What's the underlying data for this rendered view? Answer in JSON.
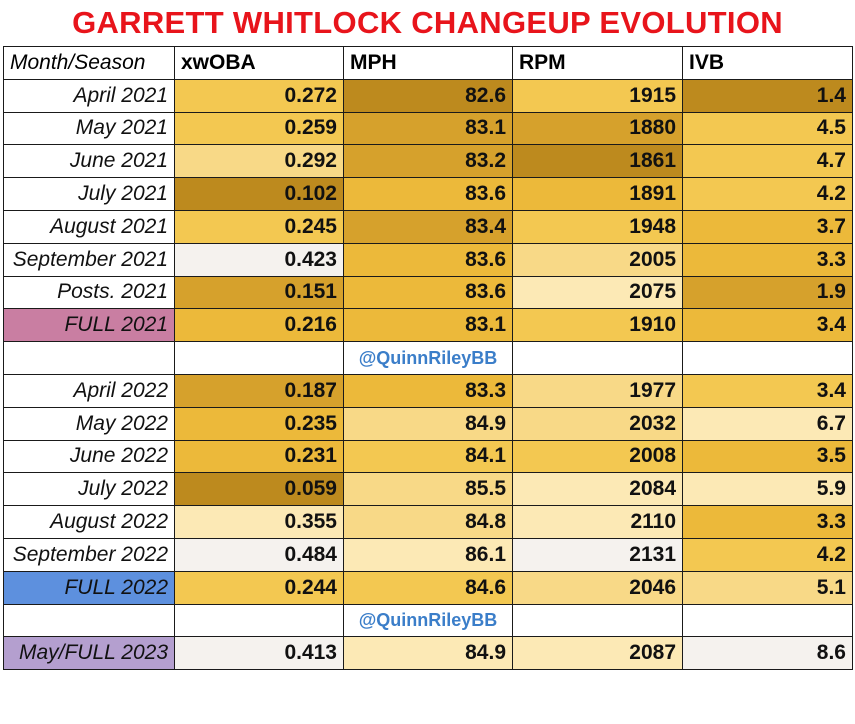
{
  "title": "GARRETT WHITLOCK CHANGEUP EVOLUTION",
  "watermark": "@QuinnRileyBB",
  "colors": {
    "title": "#e8141b",
    "watermark": "#3b7ec9",
    "full_2021_label_bg": "#c97ea2",
    "full_2022_label_bg": "#5d90de",
    "full_2023_label_bg": "#b49fcf",
    "heat_scale": [
      "#f5f2ee",
      "#fce9b5",
      "#f8d987",
      "#f3c851",
      "#ecb93a",
      "#d6a12c",
      "#bd8a1e"
    ]
  },
  "chart_data": {
    "type": "table",
    "title": "GARRETT WHITLOCK CHANGEUP EVOLUTION",
    "columns": [
      "Month/Season",
      "xwOBA",
      "MPH",
      "RPM",
      "IVB"
    ],
    "rows": [
      {
        "label": "April 2021",
        "xwOBA": "0.272",
        "MPH": "82.6",
        "RPM": "1915",
        "IVB": "1.4",
        "shade": [
          3,
          6,
          3,
          6
        ]
      },
      {
        "label": "May 2021",
        "xwOBA": "0.259",
        "MPH": "83.1",
        "RPM": "1880",
        "IVB": "4.5",
        "shade": [
          3,
          5,
          5,
          3
        ]
      },
      {
        "label": "June 2021",
        "xwOBA": "0.292",
        "MPH": "83.2",
        "RPM": "1861",
        "IVB": "4.7",
        "shade": [
          2,
          5,
          6,
          3
        ]
      },
      {
        "label": "July 2021",
        "xwOBA": "0.102",
        "MPH": "83.6",
        "RPM": "1891",
        "IVB": "4.2",
        "shade": [
          6,
          4,
          4,
          3
        ]
      },
      {
        "label": "August 2021",
        "xwOBA": "0.245",
        "MPH": "83.4",
        "RPM": "1948",
        "IVB": "3.7",
        "shade": [
          3,
          5,
          3,
          4
        ]
      },
      {
        "label": "September 2021",
        "xwOBA": "0.423",
        "MPH": "83.6",
        "RPM": "2005",
        "IVB": "3.3",
        "shade": [
          0,
          4,
          2,
          4
        ]
      },
      {
        "label": "Posts. 2021",
        "xwOBA": "0.151",
        "MPH": "83.6",
        "RPM": "2075",
        "IVB": "1.9",
        "shade": [
          5,
          4,
          1,
          5
        ]
      },
      {
        "label": "FULL 2021",
        "xwOBA": "0.216",
        "MPH": "83.1",
        "RPM": "1910",
        "IVB": "3.4",
        "shade": [
          4,
          4,
          3,
          4
        ],
        "label_color": "full_2021_label_bg"
      },
      {
        "spacer": true
      },
      {
        "label": "April 2022",
        "xwOBA": "0.187",
        "MPH": "83.3",
        "RPM": "1977",
        "IVB": "3.4",
        "shade": [
          5,
          4,
          2,
          3
        ]
      },
      {
        "label": "May 2022",
        "xwOBA": "0.235",
        "MPH": "84.9",
        "RPM": "2032",
        "IVB": "6.7",
        "shade": [
          4,
          2,
          2,
          1
        ]
      },
      {
        "label": "June 2022",
        "xwOBA": "0.231",
        "MPH": "84.1",
        "RPM": "2008",
        "IVB": "3.5",
        "shade": [
          4,
          3,
          3,
          4
        ]
      },
      {
        "label": "July 2022",
        "xwOBA": "0.059",
        "MPH": "85.5",
        "RPM": "2084",
        "IVB": "5.9",
        "shade": [
          6,
          2,
          1,
          1
        ]
      },
      {
        "label": "August 2022",
        "xwOBA": "0.355",
        "MPH": "84.8",
        "RPM": "2110",
        "IVB": "3.3",
        "shade": [
          1,
          2,
          1,
          4
        ]
      },
      {
        "label": "September 2022",
        "xwOBA": "0.484",
        "MPH": "86.1",
        "RPM": "2131",
        "IVB": "4.2",
        "shade": [
          0,
          1,
          0,
          3
        ]
      },
      {
        "label": "FULL 2022",
        "xwOBA": "0.244",
        "MPH": "84.6",
        "RPM": "2046",
        "IVB": "5.1",
        "shade": [
          3,
          3,
          2,
          2
        ],
        "label_color": "full_2022_label_bg"
      },
      {
        "spacer": true
      },
      {
        "label": "May/FULL 2023",
        "xwOBA": "0.413",
        "MPH": "84.9",
        "RPM": "2087",
        "IVB": "8.6",
        "shade": [
          0,
          1,
          1,
          0
        ],
        "label_color": "full_2023_label_bg"
      }
    ]
  }
}
